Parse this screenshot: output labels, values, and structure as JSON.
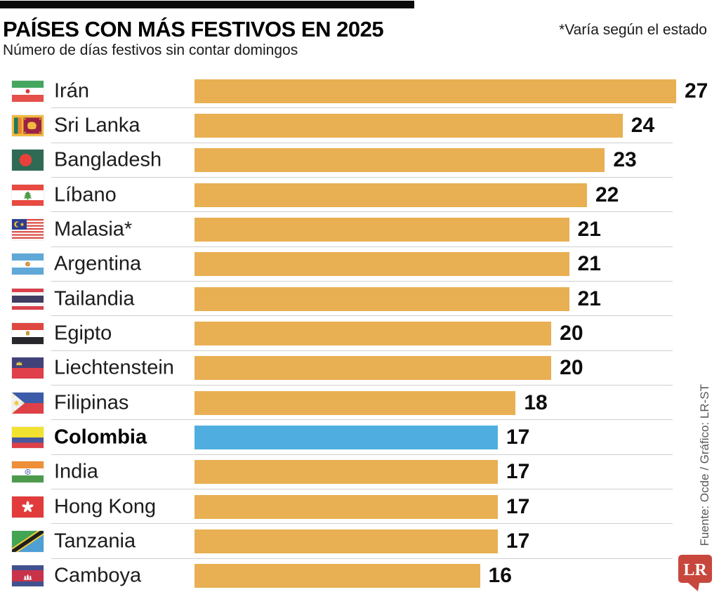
{
  "chart_data": {
    "type": "bar",
    "orientation": "horizontal",
    "title": "PAÍSES CON MÁS FESTIVOS EN 2025",
    "subtitle": "Número de días festivos sin contar domingos",
    "note": "*Varía según el estado",
    "xlabel": "",
    "ylabel": "",
    "xlim": [
      0,
      27
    ],
    "grid": false,
    "legend": "none",
    "categories": [
      "Irán",
      "Sri Lanka",
      "Bangladesh",
      "Líbano",
      "Malasia*",
      "Argentina",
      "Tailandia",
      "Egipto",
      "Liechtenstein",
      "Filipinas",
      "Colombia",
      "India",
      "Hong Kong",
      "Tanzania",
      "Camboya"
    ],
    "values": [
      27,
      24,
      23,
      22,
      21,
      21,
      21,
      20,
      20,
      18,
      17,
      17,
      17,
      17,
      16
    ],
    "highlight_category": "Colombia",
    "colors": {
      "bar": "#E8B052",
      "highlight": "#4FAEDF"
    },
    "rows": [
      {
        "country": "Irán",
        "flag": "iran",
        "value": 27,
        "highlight": false
      },
      {
        "country": "Sri Lanka",
        "flag": "sri-lanka",
        "value": 24,
        "highlight": false
      },
      {
        "country": "Bangladesh",
        "flag": "bangladesh",
        "value": 23,
        "highlight": false
      },
      {
        "country": "Líbano",
        "flag": "lebanon",
        "value": 22,
        "highlight": false
      },
      {
        "country": "Malasia*",
        "flag": "malaysia",
        "value": 21,
        "highlight": false
      },
      {
        "country": "Argentina",
        "flag": "argentina",
        "value": 21,
        "highlight": false
      },
      {
        "country": "Tailandia",
        "flag": "thailand",
        "value": 21,
        "highlight": false
      },
      {
        "country": "Egipto",
        "flag": "egypt",
        "value": 20,
        "highlight": false
      },
      {
        "country": "Liechtenstein",
        "flag": "liechtenstein",
        "value": 20,
        "highlight": false
      },
      {
        "country": "Filipinas",
        "flag": "philippines",
        "value": 18,
        "highlight": false
      },
      {
        "country": "Colombia",
        "flag": "colombia",
        "value": 17,
        "highlight": true
      },
      {
        "country": "India",
        "flag": "india",
        "value": 17,
        "highlight": false
      },
      {
        "country": "Hong Kong",
        "flag": "hong-kong",
        "value": 17,
        "highlight": false
      },
      {
        "country": "Tanzania",
        "flag": "tanzania",
        "value": 17,
        "highlight": false
      },
      {
        "country": "Camboya",
        "flag": "cambodia",
        "value": 16,
        "highlight": false
      }
    ]
  },
  "source": {
    "credit": "Fuente: Ocde / Gráfico: LR-ST",
    "logo_text": "LR",
    "logo_color": "#C7473D"
  }
}
